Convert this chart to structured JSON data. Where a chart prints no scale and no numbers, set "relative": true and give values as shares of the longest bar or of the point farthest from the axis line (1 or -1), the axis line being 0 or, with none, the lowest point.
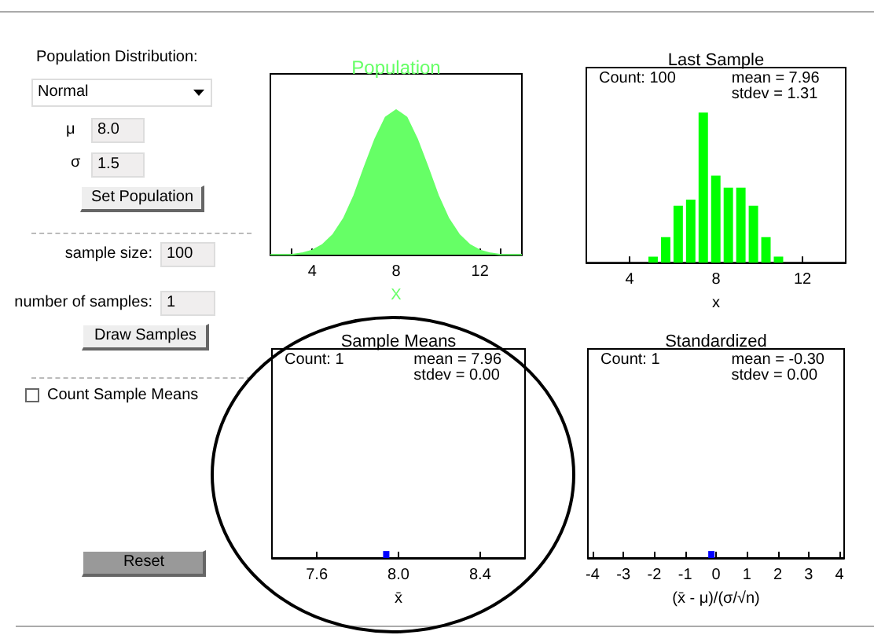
{
  "chart_data": [
    {
      "type": "other",
      "annotations": [
        "Population Distribution:",
        "Normal",
        "μ",
        "8.0",
        "σ",
        "1.5",
        "Set Population",
        "sample size:",
        "100",
        "number of samples:",
        "1",
        "Draw Samples",
        "Count Sample Means",
        "Reset"
      ]
    },
    {
      "type": "area",
      "title": "Population",
      "xlabel": "X",
      "relative": true,
      "color": "#66ff66",
      "x": [
        2,
        2.5,
        3,
        3.5,
        4,
        4.5,
        5,
        5.5,
        6,
        6.5,
        7,
        7.5,
        8,
        8.5,
        9,
        9.5,
        10,
        10.5,
        11,
        11.5,
        12,
        12.5,
        13,
        13.5,
        14
      ],
      "values": [
        0,
        0,
        0,
        0.01,
        0.03,
        0.07,
        0.14,
        0.25,
        0.41,
        0.61,
        0.8,
        0.95,
        1,
        0.95,
        0.8,
        0.61,
        0.41,
        0.25,
        0.14,
        0.07,
        0.03,
        0.01,
        0,
        0,
        0
      ],
      "xlim": [
        2,
        14
      ],
      "xticks": [
        {
          "value": 3,
          "label": null
        },
        4,
        {
          "value": 5,
          "label": null
        },
        {
          "value": 6,
          "label": null
        },
        {
          "value": 7,
          "label": null
        },
        8,
        {
          "value": 9,
          "label": null
        },
        {
          "value": 10,
          "label": null
        },
        {
          "value": 11,
          "label": null
        },
        12,
        {
          "value": 13,
          "label": null
        }
      ]
    },
    {
      "type": "bar",
      "title": "Last Sample",
      "xlabel": "x",
      "relative": true,
      "color": "#00ff00",
      "x": [
        5.09,
        5.67,
        6.25,
        6.83,
        7.41,
        7.99,
        8.57,
        9.15,
        9.73,
        10.31,
        10.89
      ],
      "values": [
        0.04,
        0.17,
        0.38,
        0.42,
        1,
        0.58,
        0.5,
        0.5,
        0.38,
        0.17,
        0.04
      ],
      "xlim": [
        2,
        14
      ],
      "xticks": [
        4,
        8,
        12
      ],
      "annotations": [
        "Count: 100",
        "mean = 7.96",
        "stdev = 1.31"
      ]
    },
    {
      "type": "bar",
      "title": "Sample Means",
      "xlabel": "x̄",
      "relative": true,
      "color": "#0000ff",
      "x": [
        7.94
      ],
      "values": [
        1
      ],
      "xlim": [
        7.38,
        8.62
      ],
      "xticks": [
        7.6,
        {
          "value": 8,
          "label": "8.0"
        },
        8.4
      ],
      "annotations": [
        "Count: 1",
        "mean = 7.96",
        "stdev = 0.00"
      ]
    },
    {
      "type": "bar",
      "title": "Standardized",
      "xlabel": "(x̄ - μ)/(σ/√n)",
      "relative": true,
      "color": "#0000ff",
      "x": [
        -0.15
      ],
      "values": [
        1
      ],
      "xlim": [
        -4.15,
        4.15
      ],
      "xticks": [
        -4,
        -3,
        -2,
        -1,
        0,
        1,
        2,
        3,
        4
      ],
      "annotations": [
        "Count: 1",
        "mean = -0.30",
        "stdev = 0.00"
      ]
    }
  ]
}
